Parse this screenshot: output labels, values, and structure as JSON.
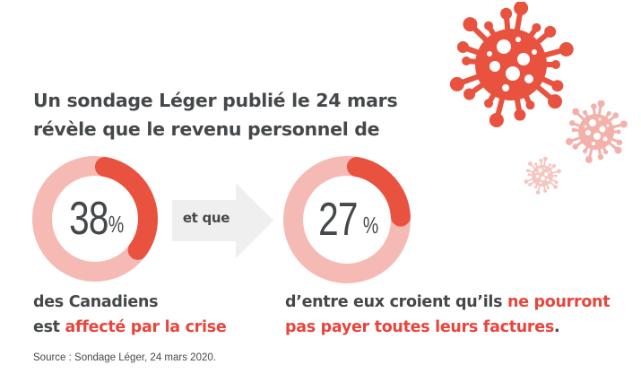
{
  "headline": {
    "line1": "Un sondage Léger publié le 24 mars",
    "line2": "révèle que le revenu personnel de"
  },
  "stats": [
    {
      "value": 38,
      "value_label": "38",
      "unit": "%",
      "fraction": 0.38
    },
    {
      "value": 27,
      "value_label": "27",
      "unit": "%",
      "fraction": 0.27
    }
  ],
  "connector": {
    "label": "et que"
  },
  "caption_left": {
    "line1": "des Canadiens",
    "line2_plain": "est ",
    "line2_highlight": "affecté par la crise"
  },
  "caption_right": {
    "line1_plain": "d’entre eux croient qu’ils ",
    "line1_highlight": "ne pourront",
    "line2_highlight": "pas payer toutes leurs factures",
    "line2_end": "."
  },
  "source": "Source : Sondage Léger, 24 mars 2020.",
  "colors": {
    "accent": "#e8523f",
    "ring_track": "#f6bab4",
    "text": "#45484a",
    "highlight_text": "#e8453c",
    "arrow": "#efefef"
  },
  "decorations": [
    "virus-icon-large",
    "virus-icon-medium",
    "virus-icon-small"
  ]
}
